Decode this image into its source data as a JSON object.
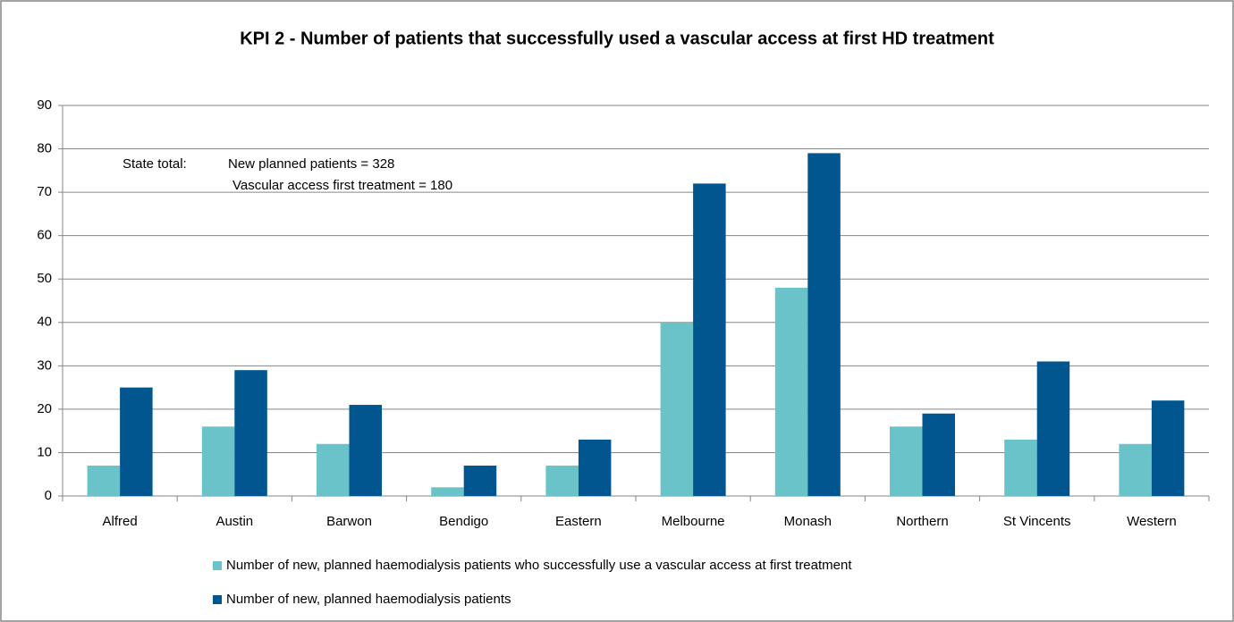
{
  "chart_data": {
    "type": "bar",
    "title": "KPI 2 - Number of patients that successfully used a vascular access at first HD treatment",
    "annotations": [
      "State total:",
      "New planned patients = 328",
      "Vascular access first treatment = 180"
    ],
    "categories": [
      "Alfred",
      "Austin",
      "Barwon",
      "Bendigo",
      "Eastern",
      "Melbourne",
      "Monash",
      "Northern",
      "St Vincents",
      "Western"
    ],
    "series": [
      {
        "name": "Number of new, planned haemodialysis patients who successfully  use a vascular access at first treatment",
        "color": "#6ac3c9",
        "values": [
          7,
          16,
          12,
          2,
          7,
          40,
          48,
          16,
          13,
          12
        ]
      },
      {
        "name": "Number of new, planned haemodialysis patients",
        "color": "#01568f",
        "values": [
          25,
          29,
          21,
          7,
          13,
          72,
          79,
          19,
          31,
          22
        ]
      }
    ],
    "ylim": [
      0,
      90
    ],
    "yticks": [
      0,
      10,
      20,
      30,
      40,
      50,
      60,
      70,
      80,
      90
    ],
    "grid": true,
    "legend": "bottom"
  }
}
